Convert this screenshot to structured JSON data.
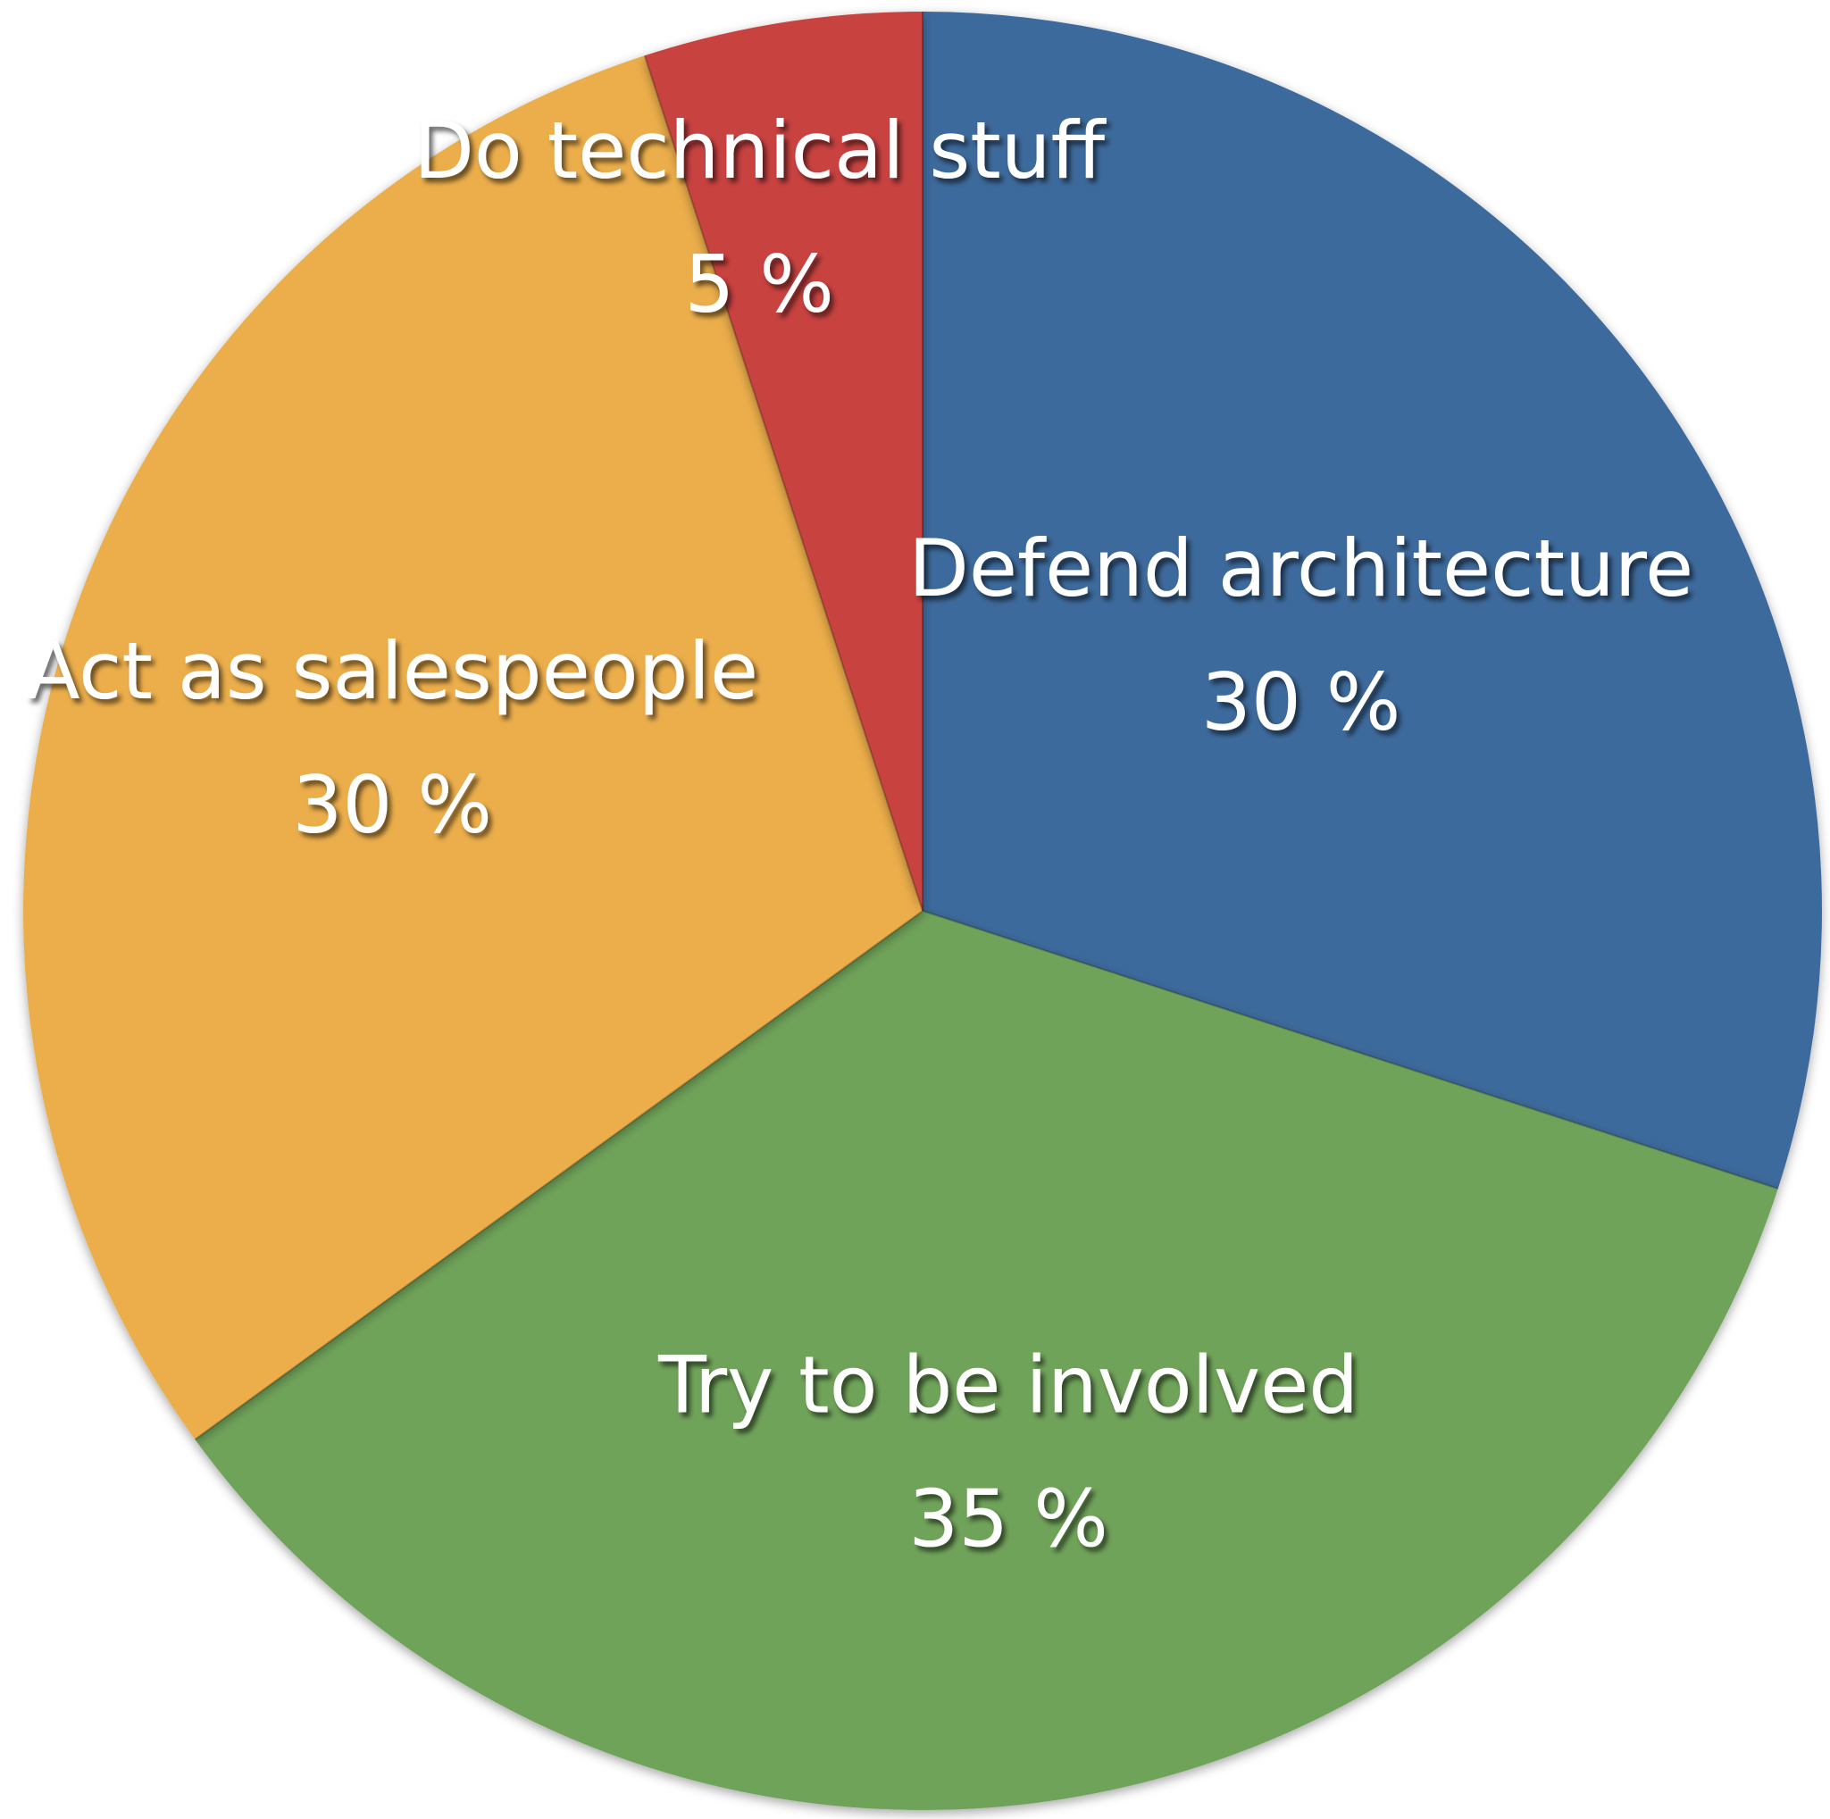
{
  "chart_data": {
    "type": "pie",
    "slices": [
      {
        "label": "Defend architecture",
        "value": 30,
        "value_label": "30 %",
        "color": "#3d6b9c"
      },
      {
        "label": "Try to be involved",
        "value": 35,
        "value_label": "35 %",
        "color": "#6fa35a"
      },
      {
        "label": "Act as salespeople",
        "value": 30,
        "value_label": "30 %",
        "color": "#ecae4b"
      },
      {
        "label": "Do technical stuff",
        "value": 5,
        "value_label": "5 %",
        "color": "#c84240"
      }
    ],
    "start_angle_deg": 0,
    "direction": "clockwise",
    "legend": "none"
  }
}
